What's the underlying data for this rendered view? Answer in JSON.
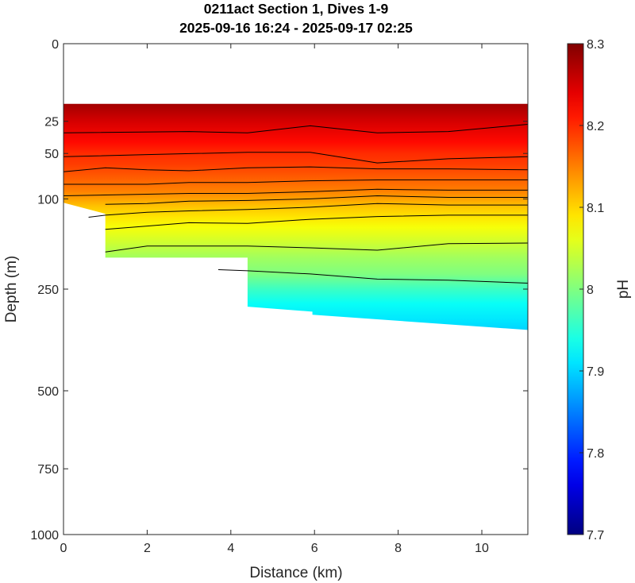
{
  "chart_data": {
    "type": "heatmap",
    "title": [
      "0211act Section 1, Dives 1-9",
      "2025-09-16 16:24 - 2025-09-17 02:25"
    ],
    "xlabel": "Distance (km)",
    "ylabel": "Depth (m)",
    "xlim": [
      0,
      11.1
    ],
    "xticks": [
      "0",
      "2",
      "4",
      "6",
      "8",
      "10"
    ],
    "xtick_values": [
      0,
      2,
      4,
      6,
      8,
      10
    ],
    "yticks": [
      "0",
      "25",
      "50",
      "100",
      "250",
      "500",
      "750",
      "1000"
    ],
    "ytick_values": [
      0,
      25,
      50,
      100,
      250,
      500,
      750,
      1000
    ],
    "y_axis": "depth, increasing downward, square-root scale",
    "colorbar": {
      "label": "pH",
      "range": [
        7.7,
        8.3
      ],
      "ticks": [
        "7.7",
        "7.8",
        "7.9",
        "8",
        "8.1",
        "8.2",
        "8.3"
      ],
      "tick_values": [
        7.7,
        7.8,
        7.9,
        8.0,
        8.1,
        8.2,
        8.3
      ],
      "colormap": "jet"
    },
    "data_top_depth": 15,
    "bottom_depth_profile": {
      "x": [
        0,
        1.0,
        1.0,
        4.4,
        4.4,
        5.95,
        5.95,
        11.1
      ],
      "depth": [
        105,
        120,
        190,
        190,
        287,
        298,
        305,
        340
      ]
    },
    "ph_profile": {
      "depth": [
        15,
        25,
        40,
        50,
        60,
        75,
        90,
        100,
        110,
        125,
        140,
        160,
        190,
        220,
        250,
        280,
        320,
        340
      ],
      "ph": [
        8.28,
        8.25,
        8.22,
        8.2,
        8.19,
        8.17,
        8.15,
        8.13,
        8.11,
        8.09,
        8.07,
        8.05,
        8.02,
        8.0,
        7.96,
        7.93,
        7.91,
        7.9
      ]
    },
    "contour_lines": [
      {
        "x": [
          0,
          3,
          4.4,
          5.9,
          7.5,
          9.2,
          11.1
        ],
        "depth": [
          33,
          32,
          33,
          28,
          33,
          32,
          27
        ]
      },
      {
        "x": [
          0,
          2,
          4.4,
          5.9,
          7.5,
          9.2,
          11.1
        ],
        "depth": [
          53,
          51,
          49,
          49,
          59,
          55,
          53
        ]
      },
      {
        "x": [
          0,
          1,
          2,
          3,
          4.4,
          5.9,
          7.5,
          9.2,
          11.1
        ],
        "depth": [
          68,
          64,
          66,
          67,
          64,
          63,
          65,
          65,
          66
        ]
      },
      {
        "x": [
          0,
          1,
          2,
          3,
          4.4,
          5.9,
          7.5,
          9.2,
          11.1
        ],
        "depth": [
          82,
          82,
          82,
          80,
          80,
          78,
          77,
          77,
          77
        ]
      },
      {
        "x": [
          0,
          1,
          2,
          3,
          4.4,
          5.9,
          7.5,
          9.2,
          11.1
        ],
        "depth": [
          96,
          95,
          94,
          93,
          93,
          91,
          88,
          89,
          89
        ]
      },
      {
        "x": [
          1,
          2,
          3,
          4.4,
          5.9,
          7.5,
          9.2,
          11.1
        ],
        "depth": [
          107,
          106,
          103,
          102,
          100,
          96,
          98,
          98
        ]
      },
      {
        "x": [
          0.6,
          1,
          2,
          3,
          4.4,
          5.9,
          7.5,
          9.2,
          11.1
        ],
        "depth": [
          125,
          122,
          118,
          116,
          114,
          111,
          106,
          108,
          108
        ]
      },
      {
        "x": [
          1,
          2,
          3,
          4.4,
          5.9,
          7.5,
          9.2,
          11.1
        ],
        "depth": [
          143,
          138,
          133,
          134,
          128,
          124,
          122,
          122
        ]
      },
      {
        "x": [
          1,
          2,
          4.4,
          5.9,
          7.5,
          9.2,
          11.1
        ],
        "depth": [
          180,
          170,
          170,
          173,
          177,
          166,
          165
        ]
      },
      {
        "x": [
          3.7,
          4.4,
          5.9,
          7.5,
          9.2,
          11.1
        ],
        "depth": [
          212,
          214,
          220,
          230,
          232,
          238
        ]
      }
    ]
  }
}
